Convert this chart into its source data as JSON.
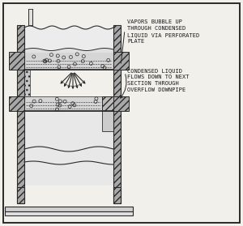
{
  "bg_color": "#f2f0eb",
  "line_color": "#2a2a2a",
  "wall_fc": "#a8a8a8",
  "liquid_fc": "#d5d5d5",
  "text_color": "#1a1a1a",
  "fig_width": 3.0,
  "fig_height": 2.79,
  "annotation1": "VAPORS BUBBLE UP\nTHROUGH CONDENSED\nLIQUID VIA PERFORATED\nPLATE",
  "annotation2": "CONDENSED LIQUID\nFLOWS DOWN TO NEXT\nSECTION THROUGH\nOVERFLOW DOWNPIPE",
  "font_size": 5.0
}
